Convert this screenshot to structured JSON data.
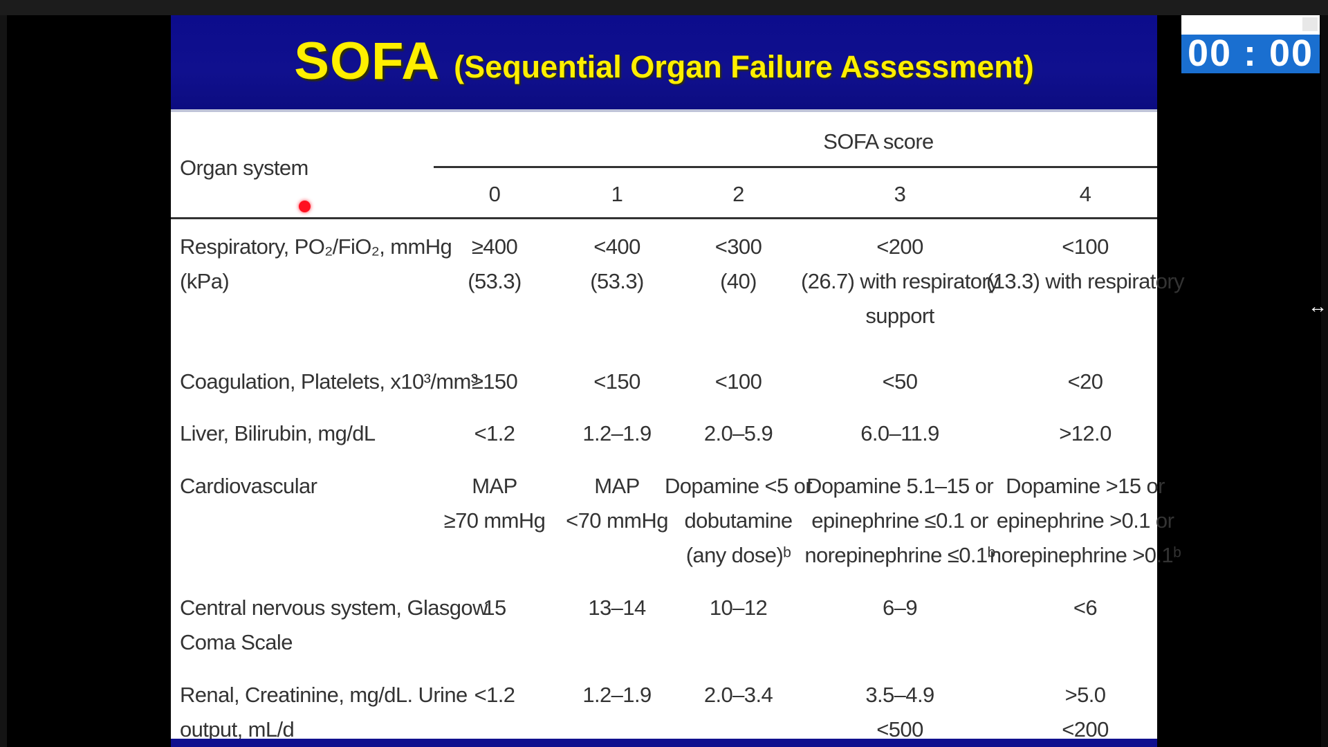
{
  "slide": {
    "title_main": "SOFA",
    "title_sub": "(Sequential Organ Failure Assessment)",
    "table": {
      "organ_header": "Organ system",
      "score_header": "SOFA score",
      "score_columns": [
        "0",
        "1",
        "2",
        "3",
        "4"
      ],
      "rows": [
        {
          "organ_lines": [
            "Respiratory, PO₂/FiO₂, mmHg",
            "(kPa)"
          ],
          "cells": [
            [
              "≥400",
              "(53.3)"
            ],
            [
              "<400",
              "(53.3)"
            ],
            [
              "<300",
              "(40)"
            ],
            [
              "<200",
              "(26.7) with respiratory",
              "support"
            ],
            [
              "<100",
              "(13.3) with respiratory"
            ]
          ]
        },
        {
          "organ_lines": [
            "Coagulation, Platelets, x10³/mm³"
          ],
          "cells": [
            [
              "≥150"
            ],
            [
              "<150"
            ],
            [
              "<100"
            ],
            [
              "<50"
            ],
            [
              "<20"
            ]
          ]
        },
        {
          "organ_lines": [
            "Liver, Bilirubin, mg/dL"
          ],
          "cells": [
            [
              "<1.2"
            ],
            [
              "1.2–1.9"
            ],
            [
              "2.0–5.9"
            ],
            [
              "6.0–11.9"
            ],
            [
              ">12.0"
            ]
          ]
        },
        {
          "organ_lines": [
            "Cardiovascular"
          ],
          "cells": [
            [
              "MAP",
              "≥70 mmHg"
            ],
            [
              "MAP",
              "<70 mmHg"
            ],
            [
              "Dopamine <5 or",
              "dobutamine",
              "(any dose)ᵇ"
            ],
            [
              "Dopamine 5.1–15 or",
              "epinephrine ≤0.1 or",
              "norepinephrine ≤0.1ᵇ"
            ],
            [
              "Dopamine >15 or",
              "epinephrine >0.1 or",
              "norepinephrine >0.1ᵇ"
            ]
          ]
        },
        {
          "organ_lines": [
            "Central nervous system, Glasgow",
            "Coma Scale"
          ],
          "cells": [
            [
              "15"
            ],
            [
              "13–14"
            ],
            [
              "10–12"
            ],
            [
              "6–9"
            ],
            [
              "<6"
            ]
          ]
        },
        {
          "organ_lines": [
            "Renal, Creatinine, mg/dL. Urine",
            "output, mL/d"
          ],
          "cells": [
            [
              "<1.2"
            ],
            [
              "1.2–1.9"
            ],
            [
              "2.0–3.4"
            ],
            [
              "3.5–4.9",
              "<500"
            ],
            [
              ">5.0",
              "<200"
            ]
          ]
        }
      ]
    }
  },
  "timer": {
    "display": "00 : 00"
  },
  "icons": {
    "resize": "resize-horizontal-icon",
    "pointer": "laser-pointer-dot"
  }
}
